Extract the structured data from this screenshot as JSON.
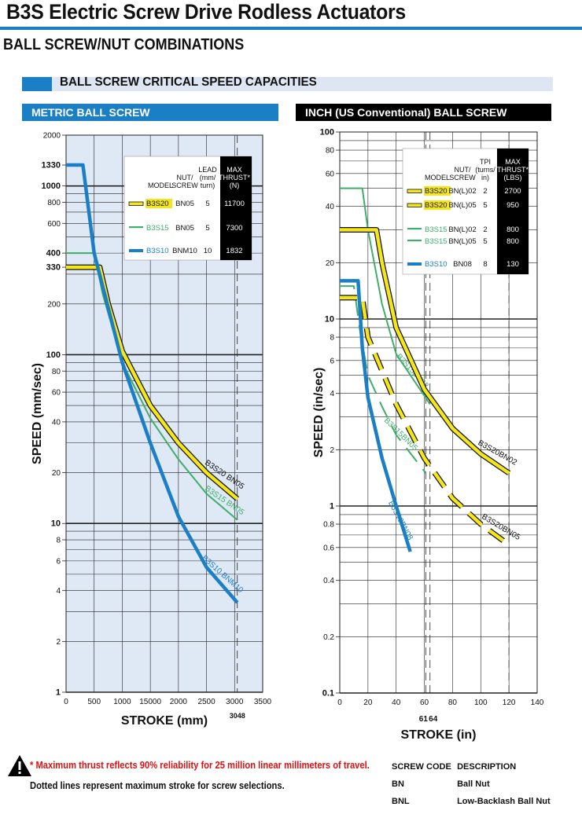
{
  "page": {
    "title": "B3S Electric Screw Drive Rodless Actuators",
    "subtitle": "BALL SCREW/NUT COMBINATIONS",
    "section": "BALL SCREW CRITICAL SPEED CAPACITIES",
    "metric_header": "METRIC BALL SCREW",
    "inch_header": "INCH (US Conventional) BALL SCREW",
    "footnote_warning": "* Maximum thrust reflects 90% reliability for 25 million linear millimeters of travel.",
    "footnote_dotted": "Dotted lines represent maximum stroke for screw selections.",
    "screw_codes_header": [
      "SCREW CODE",
      "DESCRIPTION"
    ],
    "screw_codes": [
      {
        "code": "BN",
        "description": "Ball Nut"
      },
      {
        "code": "BNL",
        "description": "Low-Backlash Ball Nut"
      }
    ],
    "colors": {
      "yellow": "#f5e61a",
      "green": "#3fae6a",
      "blue": "#1a7fc4",
      "plot_bg": "#dfe8f5"
    }
  },
  "chart_data": [
    {
      "type": "line",
      "title": "METRIC BALL SCREW",
      "xlabel": "STROKE (mm)",
      "ylabel": "SPEED (mm/sec)",
      "xlim": [
        0,
        3500
      ],
      "ylim": [
        1,
        2000
      ],
      "yscale": "log",
      "x_ticks": [
        "0",
        "500",
        "1000",
        "15000",
        "2000",
        "2500",
        "3000",
        "3500"
      ],
      "y_ticks": [
        "1",
        "2",
        "4",
        "6",
        "8",
        "10",
        "20",
        "40",
        "60",
        "80",
        "100",
        "200",
        "330",
        "400",
        "600",
        "800",
        "1000",
        "1330",
        "2000"
      ],
      "extra_x_label": "3048",
      "max_stroke_mm": 3048,
      "legend": {
        "headers": [
          "MODEL",
          "NUT/ SCREW",
          "LEAD (mm/ turn)",
          "MAX THRUST* (N)"
        ],
        "rows": [
          {
            "model": "B3S20",
            "screw": "BN05",
            "lead": "5",
            "thrust": "11700",
            "color": "yellow"
          },
          {
            "model": "B3S15",
            "screw": "BN05",
            "lead": "5",
            "thrust": "7300",
            "color": "green"
          },
          {
            "model": "B3S10",
            "screw": "BNM10",
            "lead": "10",
            "thrust": "1832",
            "color": "blue"
          }
        ]
      },
      "series": [
        {
          "name": "B3S20 BN05",
          "color": "yellow",
          "flat_speed": 330,
          "x": [
            0,
            600,
            750,
            1000,
            1500,
            2000,
            2500,
            3048
          ],
          "y": [
            330,
            330,
            200,
            105,
            50,
            30,
            20,
            14
          ]
        },
        {
          "name": "B3S15 BN05",
          "color": "green",
          "flat_speed": 400,
          "x": [
            0,
            500,
            650,
            1000,
            1500,
            2000,
            2500,
            3048
          ],
          "y": [
            400,
            400,
            230,
            90,
            42,
            24,
            15,
            10.5
          ]
        },
        {
          "name": "B3S10 BNM10",
          "color": "blue",
          "flat_speed": 1330,
          "x": [
            0,
            300,
            500,
            1000,
            1500,
            2000,
            2500,
            3048
          ],
          "y": [
            1330,
            1330,
            400,
            90,
            30,
            11,
            5.5,
            3.4
          ]
        }
      ]
    },
    {
      "type": "line",
      "title": "INCH (US Conventional) BALL SCREW",
      "xlabel": "STROKE (in)",
      "ylabel": "SPEED (in/sec)",
      "xlim": [
        0,
        140
      ],
      "ylim": [
        0.1,
        100
      ],
      "yscale": "log",
      "x_ticks": [
        "0",
        "20",
        "40",
        "60",
        "80",
        "100",
        "120",
        "140"
      ],
      "y_ticks": [
        "0.1",
        "0.2",
        "0.4",
        "0.6",
        "0.8",
        "1",
        "2",
        "4",
        "6",
        "8",
        "10",
        "20",
        "40",
        "60",
        "80",
        "100"
      ],
      "extra_x_labels": [
        "61",
        "64"
      ],
      "legend": {
        "headers": [
          "MODEL",
          "NUT/ SCREW",
          "TPI (turns/ in)",
          "MAX THRUST* (LBS)"
        ],
        "rows": [
          {
            "model": "B3S20",
            "screw": "BN(L)02",
            "tpi": "2",
            "thrust": "2700",
            "color": "yellow"
          },
          {
            "model": "B3S20",
            "screw": "BN(L)05",
            "tpi": "5",
            "thrust": "950",
            "color": "yellow",
            "dashed": true
          },
          {
            "model": "B3S15",
            "screw": "BN(L)02",
            "tpi": "2",
            "thrust": "800",
            "color": "green"
          },
          {
            "model": "B3S15",
            "screw": "BN(L)05",
            "tpi": "5",
            "thrust": "800",
            "color": "green",
            "dashed": true
          },
          {
            "model": "B3S10",
            "screw": "BN08",
            "tpi": "8",
            "thrust": "130",
            "color": "blue"
          }
        ]
      },
      "series": [
        {
          "name": "B3S20BN02",
          "color": "yellow",
          "x": [
            0,
            26,
            30,
            40,
            60,
            80,
            100,
            120
          ],
          "y": [
            30,
            30,
            20,
            9,
            4.2,
            2.6,
            1.9,
            1.5
          ]
        },
        {
          "name": "B3S20BN05",
          "color": "yellow",
          "dashed": true,
          "x": [
            0,
            16,
            20,
            40,
            60,
            80,
            100,
            120
          ],
          "y": [
            13,
            13,
            8,
            3.5,
            1.8,
            1.1,
            0.8,
            0.62
          ]
        },
        {
          "name": "B3S15BN02",
          "color": "green",
          "x": [
            0,
            16,
            20,
            30,
            40,
            64
          ],
          "y": [
            50,
            50,
            30,
            12,
            6.5,
            3.5
          ]
        },
        {
          "name": "B3S15BN05",
          "color": "green",
          "dashed": true,
          "x": [
            0,
            10,
            14,
            20,
            30,
            40,
            61
          ],
          "y": [
            15,
            15,
            9,
            5,
            3.4,
            2.4,
            1.5
          ]
        },
        {
          "name": "B3S10BN08",
          "color": "blue",
          "x": [
            0,
            13,
            16,
            20,
            30,
            40,
            50
          ],
          "y": [
            16,
            16,
            7,
            3.8,
            1.8,
            1.0,
            0.57
          ]
        }
      ]
    }
  ]
}
